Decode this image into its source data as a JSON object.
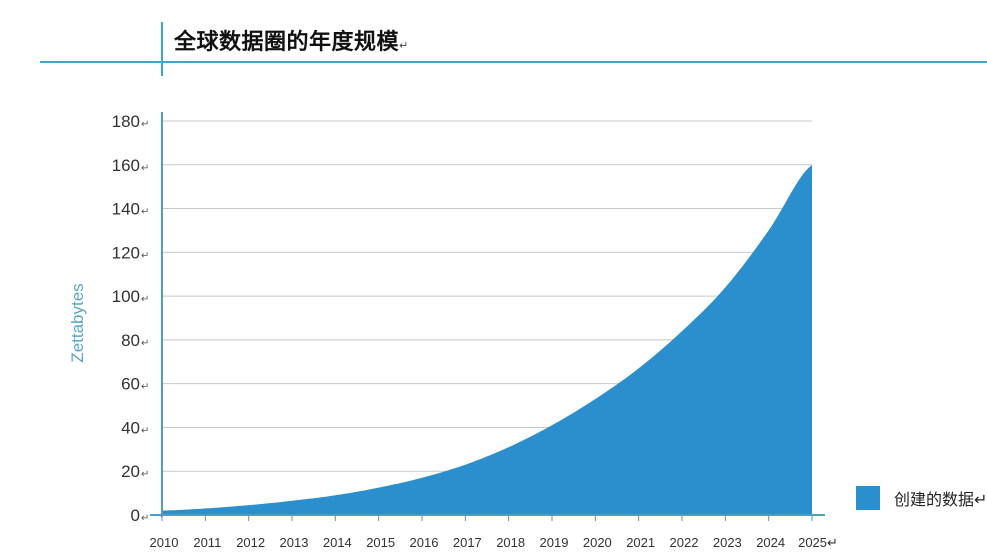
{
  "page": {
    "title": "全球数据圈的年度规模",
    "title_mark": "↵"
  },
  "legend": {
    "label": "创建的数据↵"
  },
  "colors": {
    "accent_line": "#3fa7c9",
    "series_fill": "#2b8fce",
    "gridline": "#c8c8c8",
    "axis_line": "#4d9ec4",
    "ylabel": "#5aa6bf"
  },
  "chart_data": {
    "type": "area",
    "title": "全球数据圈的年度规模",
    "xlabel": "",
    "ylabel": "Zettabytes",
    "categories": [
      "2010",
      "2011",
      "2012",
      "2013",
      "2014",
      "2015",
      "2016",
      "2017",
      "2018",
      "2019",
      "2020",
      "2021",
      "2022",
      "2023",
      "2024",
      "2025↵"
    ],
    "x": [
      2010,
      2011,
      2012,
      2013,
      2014,
      2015,
      2016,
      2017,
      2018,
      2019,
      2020,
      2021,
      2022,
      2023,
      2024,
      2025
    ],
    "y_ticks": [
      "0↵",
      "20↵",
      "40↵",
      "60↵",
      "80↵",
      "100↵",
      "120↵",
      "140↵",
      "160↵",
      "180↵"
    ],
    "ylim": [
      0,
      180
    ],
    "grid": true,
    "legend_position": "bottom-right",
    "series": [
      {
        "name": "创建的数据",
        "values": [
          2,
          3,
          4.5,
          6.5,
          9,
          12.5,
          17,
          23,
          31,
          41,
          53,
          67,
          84,
          104,
          130,
          160
        ]
      }
    ]
  }
}
